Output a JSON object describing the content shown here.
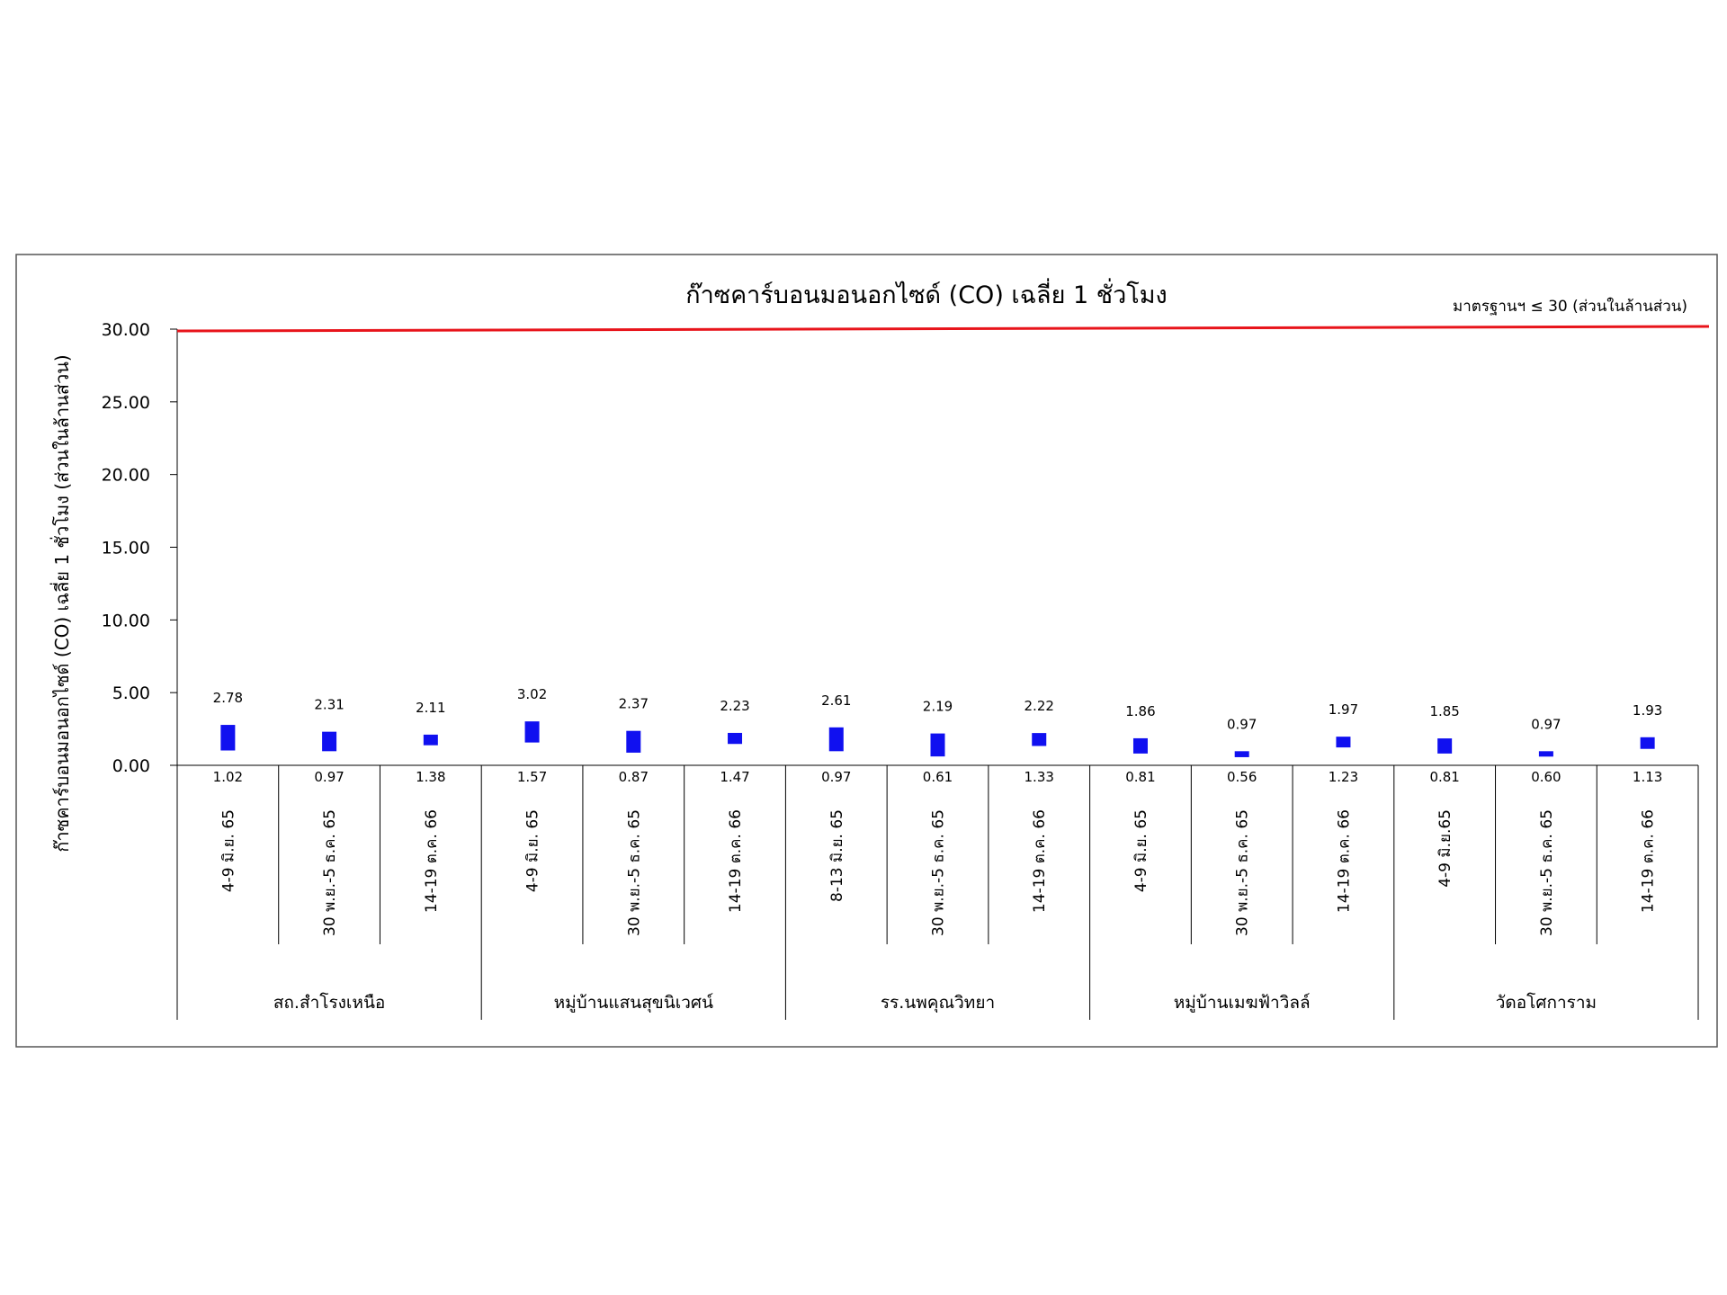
{
  "chart_data": {
    "type": "bar",
    "title": "ก๊าซคาร์บอนมอนอกไซด์ (CO) เฉลี่ย 1 ชั่วโมง",
    "ylabel": "ก๊าซคาร์บอนมอนอกไซด์ (CO) เฉลี่ย 1 ชั่วโมง (ส่วนในล้านส่วน)",
    "ylim": [
      0,
      30
    ],
    "yticks": [
      {
        "value": 0,
        "label": "0.00"
      },
      {
        "value": 5,
        "label": "5.00"
      },
      {
        "value": 10,
        "label": "10.00"
      },
      {
        "value": 15,
        "label": "15.00"
      },
      {
        "value": 20,
        "label": "20.00"
      },
      {
        "value": 25,
        "label": "25.00"
      },
      {
        "value": 30,
        "label": "30.00"
      }
    ],
    "standard": {
      "value": 30,
      "label": "มาตรฐานฯ ≤ 30 (ส่วนในล้านส่วน)",
      "color": "#e8141b"
    },
    "bar_color": "#1010f0",
    "grid": false,
    "groups": [
      "สถ.สำโรงเหนือ",
      "หมู่บ้านแสนสุขนิเวศน์",
      "รร.นพคุณวิทยา",
      "หมู่บ้านเมฆฟ้าวิลล์",
      "วัดอโศการาม"
    ],
    "categories": [
      {
        "group": 0,
        "label": "4-9 มิ.ย. 65",
        "max": 2.78,
        "min": 1.02,
        "max_label": "2.78",
        "min_label": "1.02"
      },
      {
        "group": 0,
        "label": "30 พ.ย.-5 ธ.ค. 65",
        "max": 2.31,
        "min": 0.97,
        "max_label": "2.31",
        "min_label": "0.97"
      },
      {
        "group": 0,
        "label": "14-19 ต.ค. 66",
        "max": 2.11,
        "min": 1.38,
        "max_label": "2.11",
        "min_label": "1.38"
      },
      {
        "group": 1,
        "label": "4-9 มิ.ย. 65",
        "max": 3.02,
        "min": 1.57,
        "max_label": "3.02",
        "min_label": "1.57"
      },
      {
        "group": 1,
        "label": "30 พ.ย.-5 ธ.ค. 65",
        "max": 2.37,
        "min": 0.87,
        "max_label": "2.37",
        "min_label": "0.87"
      },
      {
        "group": 1,
        "label": "14-19 ต.ค. 66",
        "max": 2.23,
        "min": 1.47,
        "max_label": "2.23",
        "min_label": "1.47"
      },
      {
        "group": 2,
        "label": "8-13 มิ.ย. 65",
        "max": 2.61,
        "min": 0.97,
        "max_label": "2.61",
        "min_label": "0.97"
      },
      {
        "group": 2,
        "label": "30 พ.ย.-5 ธ.ค. 65",
        "max": 2.19,
        "min": 0.61,
        "max_label": "2.19",
        "min_label": "0.61"
      },
      {
        "group": 2,
        "label": "14-19 ต.ค. 66",
        "max": 2.22,
        "min": 1.33,
        "max_label": "2.22",
        "min_label": "1.33"
      },
      {
        "group": 3,
        "label": "4-9 มิ.ย. 65",
        "max": 1.86,
        "min": 0.81,
        "max_label": "1.86",
        "min_label": "0.81"
      },
      {
        "group": 3,
        "label": "30 พ.ย.-5 ธ.ค. 65",
        "max": 0.97,
        "min": 0.56,
        "max_label": "0.97",
        "min_label": "0.56"
      },
      {
        "group": 3,
        "label": "14-19 ต.ค. 66",
        "max": 1.97,
        "min": 1.23,
        "max_label": "1.97",
        "min_label": "1.23"
      },
      {
        "group": 4,
        "label": "4-9 มิ.ย.65",
        "max": 1.85,
        "min": 0.81,
        "max_label": "1.85",
        "min_label": "0.81"
      },
      {
        "group": 4,
        "label": "30 พ.ย.-5 ธ.ค. 65",
        "max": 0.97,
        "min": 0.6,
        "max_label": "0.97",
        "min_label": "0.60"
      },
      {
        "group": 4,
        "label": "14-19 ต.ค. 66",
        "max": 1.93,
        "min": 1.13,
        "max_label": "1.93",
        "min_label": "1.13"
      }
    ]
  }
}
